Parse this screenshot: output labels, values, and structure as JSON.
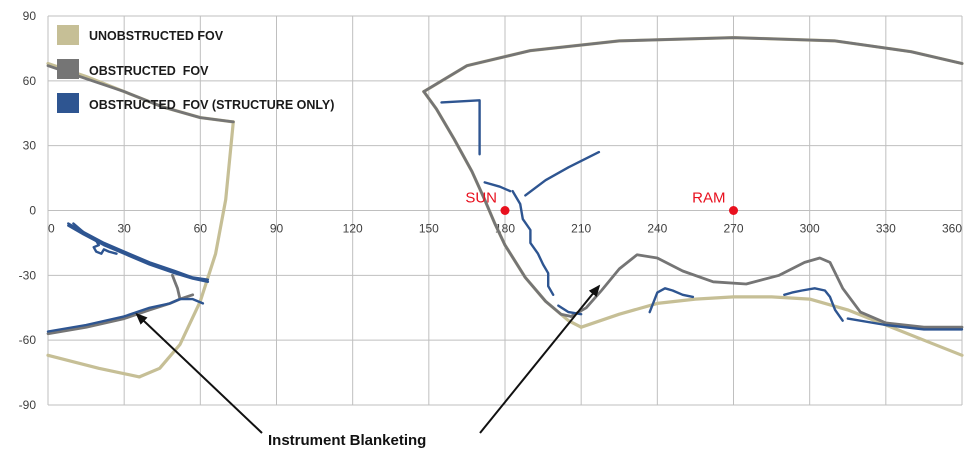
{
  "chart_data": {
    "type": "line",
    "title": "",
    "xlabel": "",
    "ylabel": "",
    "xlim": [
      0,
      360
    ],
    "ylim": [
      -90,
      90
    ],
    "x_ticks": [
      "0",
      "30",
      "60",
      "90",
      "120",
      "150",
      "180",
      "210",
      "240",
      "270",
      "300",
      "330",
      "360"
    ],
    "y_ticks": [
      "90",
      "60",
      "30",
      "0",
      "-30",
      "-60",
      "-90"
    ],
    "grid": true,
    "legend_position": "top-left",
    "series": [
      {
        "name": "UNOBSTRUCTED FOV",
        "color": "#c6bf96",
        "segments": [
          [
            [
              0,
              68
            ],
            [
              15,
              62
            ],
            [
              30,
              55
            ],
            [
              45,
              48
            ],
            [
              60,
              43
            ],
            [
              73,
              41
            ]
          ],
          [
            [
              73,
              41
            ],
            [
              70,
              5
            ],
            [
              66,
              -20
            ],
            [
              60,
              -42
            ],
            [
              52,
              -62
            ],
            [
              44,
              -73
            ],
            [
              36,
              -77
            ]
          ],
          [
            [
              36,
              -77
            ],
            [
              20,
              -73
            ],
            [
              0,
              -67
            ]
          ],
          [
            [
              148,
              55
            ],
            [
              153,
              47
            ],
            [
              160,
              33
            ],
            [
              167,
              18
            ],
            [
              172,
              5
            ],
            [
              176,
              -6
            ],
            [
              180,
              -16
            ],
            [
              188,
              -31
            ],
            [
              196,
              -42
            ],
            [
              205,
              -51
            ],
            [
              210,
              -54
            ]
          ],
          [
            [
              210,
              -54
            ],
            [
              225,
              -48
            ],
            [
              240,
              -43
            ],
            [
              255,
              -41
            ],
            [
              270,
              -40
            ],
            [
              285,
              -40
            ],
            [
              300,
              -41
            ],
            [
              315,
              -46
            ],
            [
              330,
              -53
            ],
            [
              345,
              -60
            ],
            [
              360,
              -67
            ]
          ],
          [
            [
              148,
              55
            ],
            [
              165,
              67
            ],
            [
              190,
              74
            ],
            [
              225,
              78.5
            ],
            [
              270,
              80
            ],
            [
              310,
              78.5
            ],
            [
              340,
              73.5
            ],
            [
              360,
              68
            ]
          ]
        ]
      },
      {
        "name": "OBSTRUCTED  FOV",
        "color": "#757575",
        "segments": [
          [
            [
              0,
              67
            ],
            [
              15,
              61
            ],
            [
              30,
              55
            ],
            [
              45,
              48
            ],
            [
              60,
              43
            ],
            [
              73,
              41
            ]
          ],
          [
            [
              0,
              -57
            ],
            [
              15,
              -54
            ],
            [
              30,
              -50
            ],
            [
              40,
              -46
            ],
            [
              48,
              -43
            ],
            [
              52,
              -41
            ],
            [
              57,
              -39
            ]
          ],
          [
            [
              52,
              -41
            ],
            [
              51,
              -36
            ],
            [
              50,
              -33
            ],
            [
              49,
              -30
            ]
          ],
          [
            [
              148,
              55
            ],
            [
              165,
              67
            ],
            [
              190,
              74
            ],
            [
              225,
              78.5
            ],
            [
              270,
              80
            ],
            [
              310,
              78.5
            ],
            [
              340,
              73.5
            ],
            [
              360,
              68
            ]
          ],
          [
            [
              148,
              55
            ],
            [
              153,
              47
            ],
            [
              160,
              33
            ],
            [
              167,
              18
            ],
            [
              172,
              5
            ],
            [
              176,
              -6
            ],
            [
              180,
              -16
            ],
            [
              188,
              -31
            ],
            [
              196,
              -42
            ],
            [
              202,
              -48
            ],
            [
              206,
              -49
            ]
          ],
          [
            [
              206,
              -49
            ],
            [
              212,
              -45
            ],
            [
              218,
              -37
            ],
            [
              225,
              -27
            ],
            [
              232,
              -20.5
            ],
            [
              240,
              -22
            ],
            [
              250,
              -28
            ],
            [
              262,
              -33
            ],
            [
              275,
              -34
            ],
            [
              288,
              -30
            ],
            [
              298,
              -24
            ],
            [
              304,
              -22
            ],
            [
              308,
              -24
            ],
            [
              313,
              -36
            ],
            [
              320,
              -47
            ],
            [
              330,
              -52
            ],
            [
              345,
              -54
            ],
            [
              360,
              -54
            ]
          ]
        ]
      },
      {
        "name": "OBSTRUCTED  FOV (STRUCTURE ONLY)",
        "color": "#2e5591",
        "segments": [
          [
            [
              0,
              -56
            ],
            [
              15,
              -53
            ],
            [
              30,
              -49
            ],
            [
              40,
              -45
            ],
            [
              48,
              -43
            ],
            [
              52,
              -41
            ],
            [
              57,
              -41
            ],
            [
              61,
              -43
            ]
          ],
          [
            [
              8,
              -6
            ],
            [
              14,
              -10
            ],
            [
              22,
              -15
            ],
            [
              30,
              -19
            ],
            [
              40,
              -24
            ],
            [
              50,
              -28
            ],
            [
              57,
              -31
            ],
            [
              63,
              -32
            ]
          ],
          [
            [
              8,
              -7
            ],
            [
              14,
              -11
            ],
            [
              22,
              -16
            ],
            [
              30,
              -20
            ],
            [
              40,
              -25
            ],
            [
              50,
              -29
            ],
            [
              57,
              -31.5
            ],
            [
              63,
              -33
            ]
          ],
          [
            [
              10,
              -6
            ],
            [
              13,
              -9
            ],
            [
              16,
              -12
            ],
            [
              19,
              -14
            ],
            [
              20,
              -16
            ],
            [
              18,
              -17
            ],
            [
              19,
              -19
            ],
            [
              21,
              -20
            ],
            [
              22,
              -18
            ],
            [
              24,
              -19
            ],
            [
              27,
              -20
            ]
          ],
          [
            [
              155,
              50
            ],
            [
              170,
              51
            ],
            [
              170,
              26
            ]
          ],
          [
            [
              172,
              13
            ],
            [
              178,
              11
            ],
            [
              182,
              9
            ]
          ],
          [
            [
              183,
              9
            ],
            [
              186,
              3
            ],
            [
              187,
              -4
            ],
            [
              190,
              -9
            ],
            [
              190,
              -15
            ],
            [
              193,
              -20
            ],
            [
              195,
              -25
            ],
            [
              197,
              -29
            ],
            [
              197,
              -35
            ],
            [
              199,
              -39
            ]
          ],
          [
            [
              188,
              7
            ],
            [
              196,
              14
            ],
            [
              205,
              20
            ],
            [
              217,
              27
            ]
          ],
          [
            [
              201,
              -44
            ],
            [
              205,
              -47
            ],
            [
              210,
              -48
            ]
          ],
          [
            [
              237,
              -47
            ],
            [
              240,
              -38
            ],
            [
              243,
              -36
            ],
            [
              246,
              -37
            ],
            [
              250,
              -39
            ],
            [
              254,
              -40
            ]
          ],
          [
            [
              290,
              -39
            ],
            [
              293,
              -38
            ],
            [
              297,
              -37
            ],
            [
              302,
              -36
            ],
            [
              306,
              -37
            ],
            [
              308,
              -40
            ],
            [
              310,
              -46
            ],
            [
              313,
              -51
            ]
          ],
          [
            [
              315,
              -50
            ],
            [
              330,
              -53
            ],
            [
              345,
              -55
            ],
            [
              360,
              -55
            ]
          ]
        ]
      }
    ],
    "markers": [
      {
        "label": "SUN",
        "x": 180,
        "y": 0,
        "color": "#e8101e"
      },
      {
        "label": "RAM",
        "x": 270,
        "y": 0,
        "color": "#e8101e"
      }
    ],
    "annotation": {
      "text": "Instrument Blanketing",
      "targets": [
        [
          35,
          -48
        ],
        [
          217,
          -35
        ]
      ]
    }
  }
}
